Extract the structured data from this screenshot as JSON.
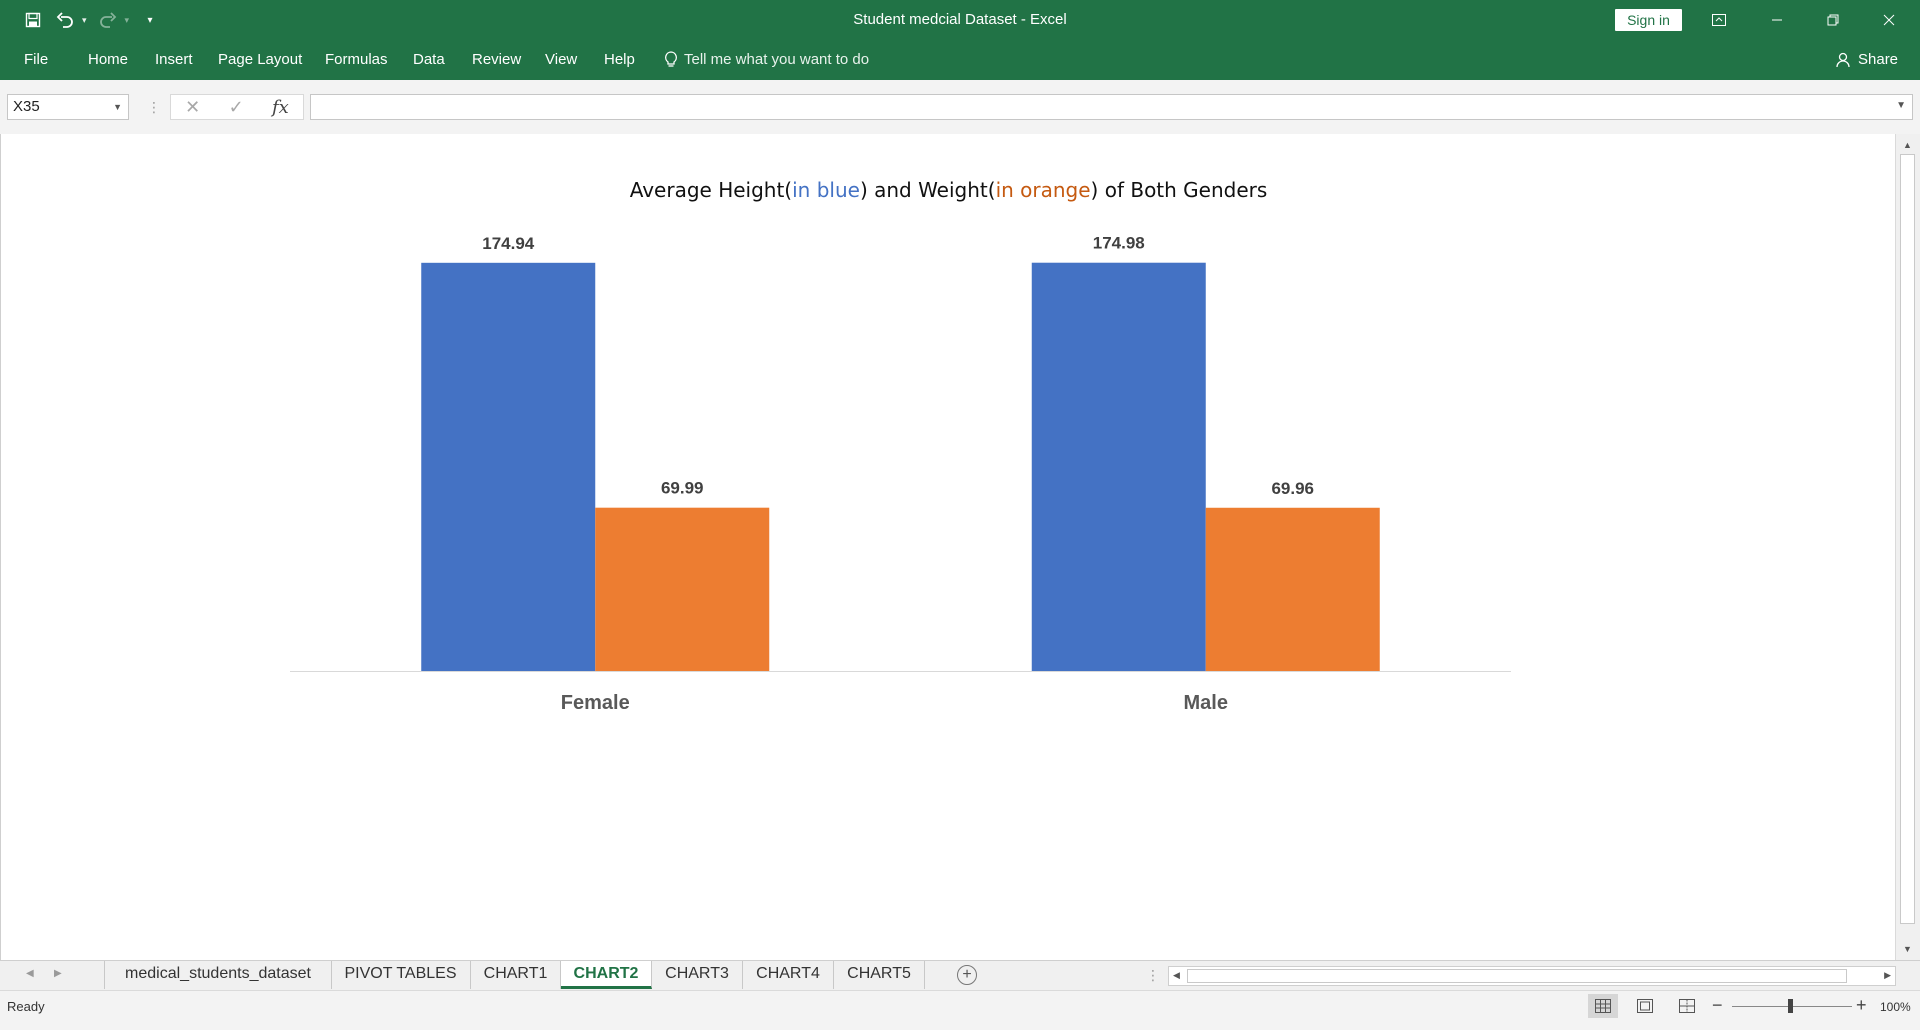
{
  "window": {
    "title": "Student medcial Dataset  -  Excel",
    "sign_in_label": "Sign in"
  },
  "quick_access": {
    "icons": [
      "save-icon",
      "undo-icon",
      "redo-icon",
      "customize-qat-icon"
    ]
  },
  "ribbon": {
    "tabs": [
      "File",
      "Home",
      "Insert",
      "Page Layout",
      "Formulas",
      "Data",
      "Review",
      "View",
      "Help"
    ],
    "tell_me": "Tell me what you want to do",
    "share_label": "Share"
  },
  "formula_bar": {
    "name_box": "X35",
    "formula": "",
    "fx_label": "fx"
  },
  "chart": {
    "title_parts": [
      "Average Height(",
      "in blue",
      ") and Weight(",
      "in orange",
      ") of Both Genders"
    ]
  },
  "chart_data": {
    "type": "bar",
    "categories": [
      "Female",
      "Male"
    ],
    "series": [
      {
        "values": [
          174.94,
          174.98
        ],
        "color": "#4472c4"
      },
      {
        "values": [
          69.99,
          69.96
        ],
        "color": "#ed7d31"
      }
    ],
    "data_labels": [
      [
        "174.94",
        "174.98"
      ],
      [
        "69.99",
        "69.96"
      ]
    ],
    "title": "Average Height(in blue) and Weight(in orange) of Both Genders",
    "ylim": [
      0,
      180
    ],
    "grid": false,
    "legend": "none"
  },
  "sheet_tabs": {
    "items": [
      "medical_students_dataset",
      "PIVOT TABLES",
      "CHART1",
      "CHART2",
      "CHART3",
      "CHART4",
      "CHART5"
    ],
    "active": "CHART2"
  },
  "status": {
    "text": "Ready",
    "zoom": "100%"
  }
}
